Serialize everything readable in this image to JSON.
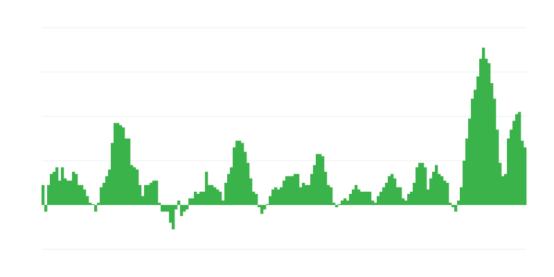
{
  "chart_data": {
    "type": "bar",
    "title": "",
    "xlabel": "",
    "ylabel": "",
    "ylim": [
      -1,
      4
    ],
    "grid": true,
    "gridlines_y": [
      -1,
      0,
      1,
      2,
      3,
      4
    ],
    "bar_color": "#39b34a",
    "grid_color": "#ececec",
    "values": [
      0.45,
      -0.15,
      0.45,
      0.7,
      0.75,
      0.85,
      0.55,
      0.85,
      0.6,
      0.55,
      0.55,
      0.75,
      0.7,
      0.45,
      0.45,
      0.35,
      0.2,
      0.05,
      0.02,
      -0.15,
      0.05,
      0.4,
      0.5,
      0.65,
      0.8,
      1.4,
      1.85,
      1.85,
      1.8,
      1.75,
      1.5,
      1.5,
      0.9,
      0.85,
      0.8,
      0.45,
      0.2,
      0.45,
      0.45,
      0.5,
      0.55,
      0.55,
      0.05,
      -0.15,
      -0.15,
      -0.15,
      -0.4,
      -0.55,
      -0.1,
      0.1,
      -0.25,
      -0.15,
      -0.1,
      0.15,
      0.15,
      0.3,
      0.25,
      0.3,
      0.3,
      0.75,
      0.45,
      0.45,
      0.4,
      0.35,
      0.3,
      0.1,
      0.5,
      0.7,
      0.85,
      1.3,
      1.45,
      1.45,
      1.4,
      1.2,
      0.95,
      0.6,
      0.3,
      0.25,
      -0.05,
      -0.2,
      -0.1,
      0.02,
      0.2,
      0.35,
      0.4,
      0.35,
      0.4,
      0.55,
      0.65,
      0.65,
      0.65,
      0.7,
      0.7,
      0.4,
      0.5,
      0.45,
      0.45,
      0.7,
      0.9,
      1.15,
      1.15,
      1.1,
      0.75,
      0.45,
      0.4,
      0.05,
      -0.05,
      0.02,
      0.1,
      0.15,
      0.1,
      0.25,
      0.35,
      0.45,
      0.35,
      0.3,
      0.3,
      0.3,
      0.3,
      0.1,
      0.05,
      0.2,
      0.3,
      0.4,
      0.5,
      0.65,
      0.7,
      0.6,
      0.4,
      0.4,
      0.15,
      0.1,
      0.25,
      0.3,
      0.5,
      0.85,
      0.95,
      0.95,
      0.85,
      0.35,
      0.6,
      0.75,
      0.9,
      0.7,
      0.65,
      0.55,
      0.5,
      0.05,
      -0.05,
      -0.15,
      0.1,
      0.4,
      1.0,
      1.5,
      1.95,
      2.4,
      2.6,
      2.9,
      3.3,
      3.55,
      3.3,
      3.2,
      2.75,
      2.4,
      1.7,
      0.95,
      0.65,
      0.7,
      1.5,
      1.7,
      1.9,
      2.05,
      2.1,
      1.45,
      1.3
    ]
  }
}
